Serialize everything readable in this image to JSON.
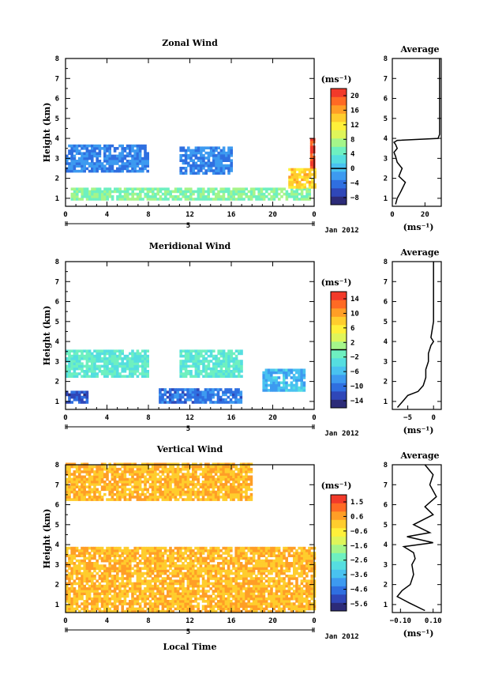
{
  "panels": [
    {
      "title": "Zonal Wind",
      "ylabel": "Height (km)",
      "ylim": [
        0.6,
        8
      ],
      "yticks": [
        "1",
        "2",
        "3",
        "4",
        "5",
        "6",
        "7",
        "8"
      ],
      "xticks": [
        "0",
        "4",
        "8",
        "12",
        "16",
        "20",
        "0"
      ],
      "date_label": "Jan 2012",
      "day_label": "5",
      "colorbar": {
        "unit": "(ms⁻¹)",
        "min": -10,
        "max": 22,
        "ticks": [
          "20",
          "16",
          "12",
          "8",
          "4",
          "0",
          "−4",
          "−8"
        ],
        "zero_line": 0
      },
      "average": {
        "title": "Average",
        "xlim": [
          0,
          30
        ],
        "xticks": [
          "0",
          "20"
        ],
        "unit": "(ms⁻¹)"
      }
    },
    {
      "title": "Meridional Wind",
      "ylabel": "Height (km)",
      "ylim": [
        0.6,
        8
      ],
      "yticks": [
        "1",
        "2",
        "3",
        "4",
        "5",
        "6",
        "7",
        "8"
      ],
      "xticks": [
        "0",
        "4",
        "8",
        "12",
        "16",
        "20",
        "0"
      ],
      "date_label": "Jan 2012",
      "day_label": "5",
      "colorbar": {
        "unit": "(ms⁻¹)",
        "min": -16,
        "max": 16,
        "ticks": [
          "14",
          "10",
          "6",
          "2",
          "−2",
          "−6",
          "−10",
          "−14"
        ],
        "zero_line": 0
      },
      "average": {
        "title": "Average",
        "xlim": [
          -8,
          1.5
        ],
        "xticks": [
          "−5",
          "0"
        ],
        "unit": "(ms⁻¹)"
      }
    },
    {
      "title": "Vertical Wind",
      "ylabel": "Height (km)",
      "ylim": [
        0.6,
        8
      ],
      "yticks": [
        "1",
        "2",
        "3",
        "4",
        "5",
        "6",
        "7",
        "8"
      ],
      "xticks": [
        "0",
        "4",
        "8",
        "12",
        "16",
        "20",
        "0"
      ],
      "date_label": "Jan 2012",
      "day_label": "5",
      "xlabel": "Local Time",
      "colorbar": {
        "unit": "(ms⁻¹)",
        "min": -6.1,
        "max": 2.1,
        "ticks": [
          "1.5",
          "0.6",
          "−0.6",
          "−1.6",
          "−2.6",
          "−3.6",
          "−4.6",
          "−5.6"
        ],
        "zero_line": null
      },
      "average": {
        "title": "Average",
        "xlim": [
          -0.15,
          0.15
        ],
        "xticks": [
          "−0.10",
          "0.10"
        ],
        "unit": "(ms⁻¹)"
      }
    }
  ],
  "chart_data": [
    {
      "type": "heatmap",
      "title": "Zonal Wind",
      "xlabel": "",
      "ylabel": "Height (km)",
      "x_unit": "local time (h)",
      "xlim": [
        0,
        24
      ],
      "ylim": [
        0.6,
        8
      ],
      "colorbar_range": [
        -10,
        22
      ],
      "regions": [
        {
          "t0": 0.5,
          "t1": 23.5,
          "h0": 0.9,
          "h1": 1.5,
          "value": 6
        },
        {
          "t0": 0,
          "t1": 8,
          "h0": 2.3,
          "h1": 3.6,
          "value": -3
        },
        {
          "t0": 11,
          "t1": 16,
          "h0": 2.2,
          "h1": 3.5,
          "value": -3
        },
        {
          "t0": 21.5,
          "t1": 24,
          "h0": 1.5,
          "h1": 2.4,
          "value": 14
        },
        {
          "t0": 23.6,
          "t1": 24,
          "h0": 2.5,
          "h1": 4.0,
          "value": 20
        }
      ],
      "average_profile": {
        "x": [
          2,
          3,
          5,
          8,
          4,
          6,
          3,
          2,
          1,
          3,
          2,
          1,
          3,
          28,
          29,
          29,
          29,
          29,
          29
        ],
        "height": [
          0.7,
          1.0,
          1.3,
          1.8,
          2.1,
          2.5,
          2.8,
          3.1,
          3.3,
          3.5,
          3.7,
          3.8,
          3.9,
          4.0,
          4.2,
          5.0,
          6.0,
          7.0,
          8.0
        ]
      }
    },
    {
      "type": "heatmap",
      "title": "Meridional Wind",
      "xlabel": "",
      "ylabel": "Height (km)",
      "x_unit": "local time (h)",
      "xlim": [
        0,
        24
      ],
      "ylim": [
        0.6,
        8
      ],
      "colorbar_range": [
        -16,
        16
      ],
      "regions": [
        {
          "t0": 0,
          "t1": 2,
          "h0": 0.9,
          "h1": 1.5,
          "value": -12
        },
        {
          "t0": 9,
          "t1": 17,
          "h0": 0.9,
          "h1": 1.6,
          "value": -10
        },
        {
          "t0": 0,
          "t1": 8,
          "h0": 2.2,
          "h1": 3.5,
          "value": -2
        },
        {
          "t0": 11,
          "t1": 17,
          "h0": 2.2,
          "h1": 3.5,
          "value": -2
        },
        {
          "t0": 19,
          "t1": 23,
          "h0": 1.5,
          "h1": 2.6,
          "value": -6
        }
      ],
      "average_profile": {
        "x": [
          -7,
          -6,
          -5,
          -3,
          -2,
          -1.5,
          -1.5,
          -1,
          -1,
          -0.5,
          0,
          -0.5,
          0,
          0,
          0,
          0
        ],
        "height": [
          0.7,
          1.0,
          1.3,
          1.5,
          1.8,
          2.2,
          2.6,
          3.0,
          3.4,
          3.8,
          4.0,
          4.2,
          5.0,
          6.0,
          7.0,
          8.0
        ]
      }
    },
    {
      "type": "heatmap",
      "title": "Vertical Wind",
      "xlabel": "Local Time",
      "ylabel": "Height (km)",
      "x_unit": "local time (h)",
      "xlim": [
        0,
        24
      ],
      "ylim": [
        0.6,
        8
      ],
      "colorbar_range": [
        -6.1,
        2.1
      ],
      "regions": [
        {
          "t0": 0,
          "t1": 24,
          "h0": 0.6,
          "h1": 3.8,
          "value": 0.3
        },
        {
          "t0": 0,
          "t1": 18,
          "h0": 6.2,
          "h1": 8.0,
          "value": 0.3
        }
      ],
      "average_profile": {
        "x": [
          0.05,
          -0.05,
          -0.12,
          -0.09,
          -0.04,
          -0.02,
          -0.03,
          -0.01,
          -0.02,
          -0.08,
          0.1,
          -0.06,
          0.08,
          -0.02,
          0.1,
          0.05,
          0.12,
          0.08,
          0.1,
          0.05
        ],
        "height": [
          0.7,
          1.1,
          1.4,
          1.7,
          2.0,
          2.5,
          3.0,
          3.3,
          3.6,
          3.9,
          4.1,
          4.4,
          4.6,
          5.0,
          5.5,
          5.9,
          6.4,
          7.0,
          7.5,
          8.0
        ]
      }
    }
  ]
}
